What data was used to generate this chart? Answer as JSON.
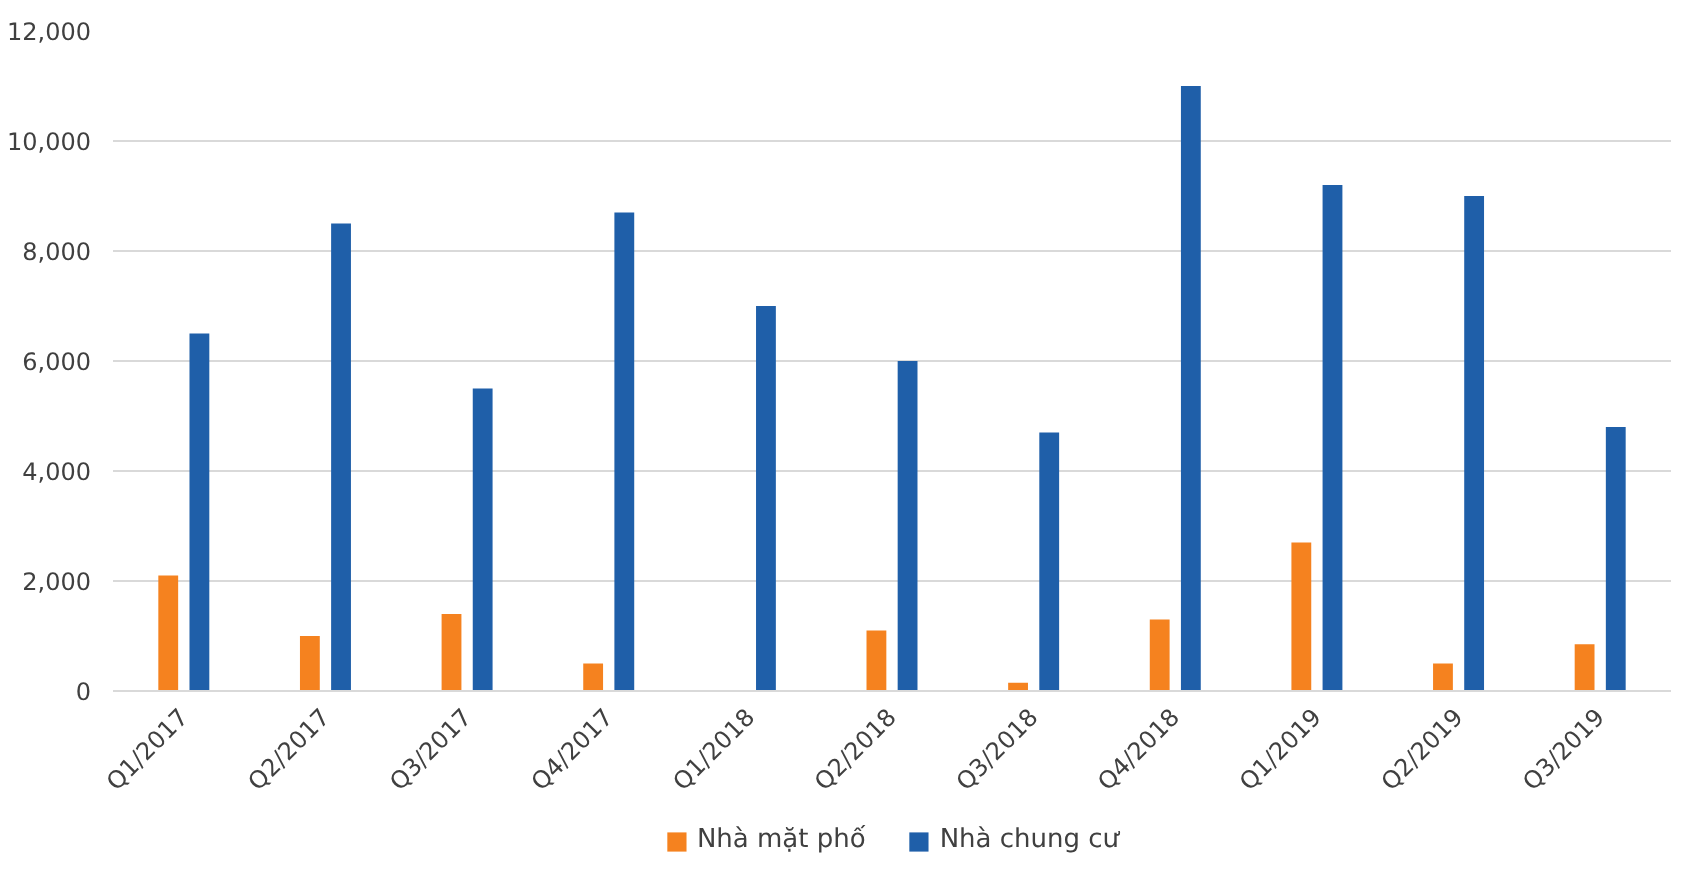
{
  "chart_data": {
    "type": "bar",
    "categories": [
      "Q1/2017",
      "Q2/2017",
      "Q3/2017",
      "Q4/2017",
      "Q1/2018",
      "Q2/2018",
      "Q3/2018",
      "Q4/2018",
      "Q1/2019",
      "Q2/2019",
      "Q3/2019"
    ],
    "series": [
      {
        "name": "Nhà mặt phố",
        "color": "#f5821f",
        "values": [
          2100,
          1000,
          1400,
          500,
          0,
          1100,
          150,
          1300,
          2700,
          500,
          850
        ]
      },
      {
        "name": "Nhà chung cư",
        "color": "#1f5fa9",
        "values": [
          6500,
          8500,
          5500,
          8700,
          7000,
          6000,
          4700,
          11000,
          9200,
          9000,
          4800
        ]
      }
    ],
    "ylim": [
      0,
      12000
    ],
    "yticks": [
      {
        "value": 0,
        "label": "0"
      },
      {
        "value": 2000,
        "label": "2,000"
      },
      {
        "value": 4000,
        "label": "4,000"
      },
      {
        "value": 6000,
        "label": "6,000"
      },
      {
        "value": 8000,
        "label": "8,000"
      },
      {
        "value": 10000,
        "label": "10,000"
      },
      {
        "value": 12000,
        "label": "12,000"
      }
    ],
    "grid": "y",
    "legend": "bottom"
  }
}
